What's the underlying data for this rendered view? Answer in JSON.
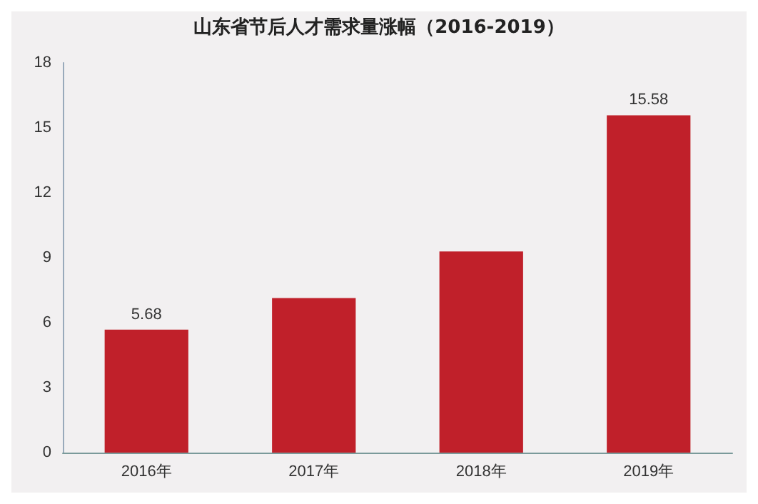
{
  "chart_data": {
    "type": "bar",
    "title": "山东省节后人才需求量涨幅（2016-2019）",
    "categories": [
      "2016年",
      "2017年",
      "2018年",
      "2019年"
    ],
    "values": [
      5.68,
      7.14,
      9.29,
      15.58
    ],
    "value_labels": [
      "5.68",
      null,
      null,
      "15.58"
    ],
    "color": "#c0202a",
    "ylim": [
      0,
      18
    ],
    "yticks": [
      0,
      3,
      6,
      9,
      12,
      15,
      18
    ],
    "grid": false
  }
}
